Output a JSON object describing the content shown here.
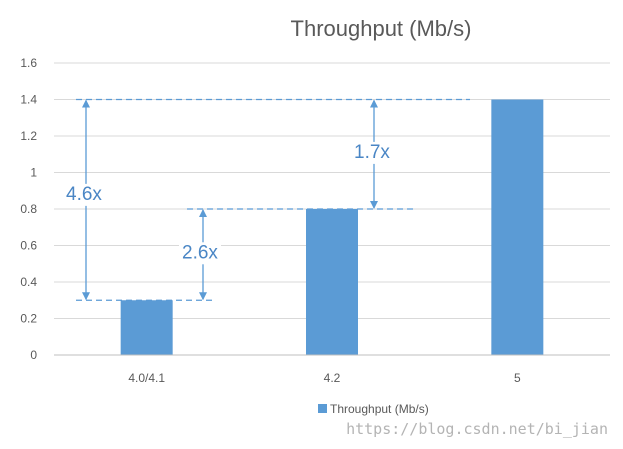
{
  "chart_data": {
    "type": "bar",
    "title": "Throughput (Mb/s)",
    "categories": [
      "4.0/4.1",
      "4.2",
      "5"
    ],
    "series": [
      {
        "name": "Throughput (Mb/s)",
        "values": [
          0.3,
          0.8,
          1.4
        ],
        "color": "#5b9bd5"
      }
    ],
    "ylim": [
      0,
      1.6
    ],
    "yticks": [
      0,
      0.2,
      0.4,
      0.6,
      0.8,
      1,
      1.2,
      1.4,
      1.6
    ],
    "ytick_labels": [
      "0",
      "0.2",
      "0.4",
      "0.6",
      "0.8",
      "1",
      "1.2",
      "1.4",
      "1.6"
    ],
    "grid": true,
    "legend_position": "bottom",
    "annotations": [
      {
        "label": "4.6x",
        "from": 0.3,
        "to": 1.4
      },
      {
        "label": "2.6x",
        "from": 0.3,
        "to": 0.8
      },
      {
        "label": "1.7x",
        "from": 0.8,
        "to": 1.4
      }
    ],
    "accent_color": "#4a86c5"
  },
  "watermark": "https://blog.csdn.net/bi_jian"
}
